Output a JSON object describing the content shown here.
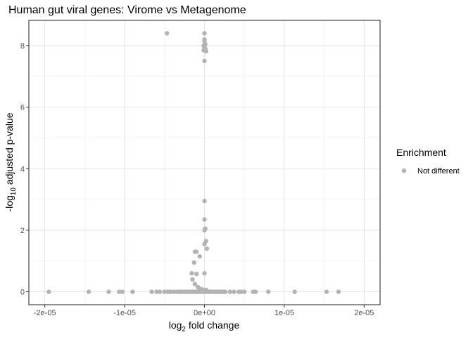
{
  "chart_data": {
    "type": "scatter",
    "title": "Human gut viral genes: Virome vs Metagenome",
    "xlabel": {
      "main": "log",
      "sub": "2",
      "rest": " fold change"
    },
    "ylabel": {
      "pre": "-log",
      "sub": "10",
      "rest": " adjusted p-value"
    },
    "xlim": [
      -2.2e-05,
      2.2e-05
    ],
    "ylim": [
      -0.42,
      8.82
    ],
    "xticks": [
      {
        "value": -2e-05,
        "label": "-2e-05"
      },
      {
        "value": -1e-05,
        "label": "-1e-05"
      },
      {
        "value": 0,
        "label": "0e+00"
      },
      {
        "value": 1e-05,
        "label": "1e-05"
      },
      {
        "value": 2e-05,
        "label": "2e-05"
      }
    ],
    "yticks": [
      {
        "value": 0,
        "label": "0"
      },
      {
        "value": 2,
        "label": "2"
      },
      {
        "value": 4,
        "label": "4"
      },
      {
        "value": 6,
        "label": "6"
      },
      {
        "value": 8,
        "label": "8"
      }
    ],
    "grid": true,
    "legend": {
      "title": "Enrichment",
      "placement": "right",
      "entries": [
        "Not different"
      ]
    },
    "series": [
      {
        "name": "Not different",
        "color": "#b3b3b3",
        "points": [
          [
            -4.7e-06,
            8.4
          ],
          [
            0,
            8.4
          ],
          [
            0,
            8.2
          ],
          [
            0,
            8.15
          ],
          [
            1e-07,
            8.05
          ],
          [
            -1e-07,
            8.0
          ],
          [
            0,
            7.95
          ],
          [
            1e-07,
            7.9
          ],
          [
            -1e-07,
            7.85
          ],
          [
            2e-07,
            7.82
          ],
          [
            0,
            7.5
          ],
          [
            0,
            2.95
          ],
          [
            0,
            2.35
          ],
          [
            1e-07,
            2.05
          ],
          [
            0,
            2.0
          ],
          [
            2e-07,
            1.65
          ],
          [
            0,
            1.55
          ],
          [
            3e-07,
            1.4
          ],
          [
            -1.2e-06,
            1.3
          ],
          [
            -1e-06,
            1.3
          ],
          [
            -6e-07,
            1.15
          ],
          [
            -1.3e-06,
            0.95
          ],
          [
            -1.6e-06,
            0.6
          ],
          [
            -1e-06,
            0.58
          ],
          [
            0,
            0.6
          ],
          [
            -1.5e-06,
            0.4
          ],
          [
            -1.2e-06,
            0.25
          ],
          [
            -8e-07,
            0.15
          ],
          [
            -6e-07,
            0.1
          ],
          [
            -3e-07,
            0.08
          ],
          [
            -1e-07,
            0.05
          ],
          [
            2e-07,
            0.06
          ],
          [
            -1.95e-05,
            0
          ],
          [
            -1.45e-05,
            0
          ],
          [
            -1.2e-05,
            0
          ],
          [
            -1.07e-05,
            0
          ],
          [
            -1.03e-05,
            0
          ],
          [
            -9e-06,
            0
          ],
          [
            -6.6e-06,
            0
          ],
          [
            -6e-06,
            0
          ],
          [
            -5.6e-06,
            0
          ],
          [
            -5e-06,
            0
          ],
          [
            -4.6e-06,
            0
          ],
          [
            -4.4e-06,
            0
          ],
          [
            -4.2e-06,
            0
          ],
          [
            -3.8e-06,
            0
          ],
          [
            -3.4e-06,
            0
          ],
          [
            -3.1e-06,
            0
          ],
          [
            -2.8e-06,
            0
          ],
          [
            -2.5e-06,
            0
          ],
          [
            -2.2e-06,
            0
          ],
          [
            -2e-06,
            0
          ],
          [
            -1.8e-06,
            0
          ],
          [
            -1.6e-06,
            0
          ],
          [
            -1.4e-06,
            0
          ],
          [
            -1.2e-06,
            0
          ],
          [
            -1e-06,
            0
          ],
          [
            -8e-07,
            0
          ],
          [
            -6e-07,
            0
          ],
          [
            -4e-07,
            0
          ],
          [
            -2e-07,
            0
          ],
          [
            0,
            0
          ],
          [
            2e-07,
            0
          ],
          [
            4e-07,
            0
          ],
          [
            6e-07,
            0
          ],
          [
            8e-07,
            0
          ],
          [
            1e-06,
            0
          ],
          [
            1.2e-06,
            0
          ],
          [
            1.4e-06,
            0
          ],
          [
            1.6e-06,
            0
          ],
          [
            1.8e-06,
            0
          ],
          [
            2e-06,
            0
          ],
          [
            2.2e-06,
            0
          ],
          [
            2.4e-06,
            0
          ],
          [
            2.6e-06,
            0
          ],
          [
            3.2e-06,
            0
          ],
          [
            3.7e-06,
            0
          ],
          [
            4.3e-06,
            0
          ],
          [
            4.6e-06,
            0
          ],
          [
            5e-06,
            0
          ],
          [
            6.1e-06,
            0
          ],
          [
            6.4e-06,
            0
          ],
          [
            8e-06,
            0
          ],
          [
            1.13e-05,
            0
          ],
          [
            1.53e-05,
            0
          ],
          [
            1.68e-05,
            0
          ]
        ]
      }
    ]
  }
}
